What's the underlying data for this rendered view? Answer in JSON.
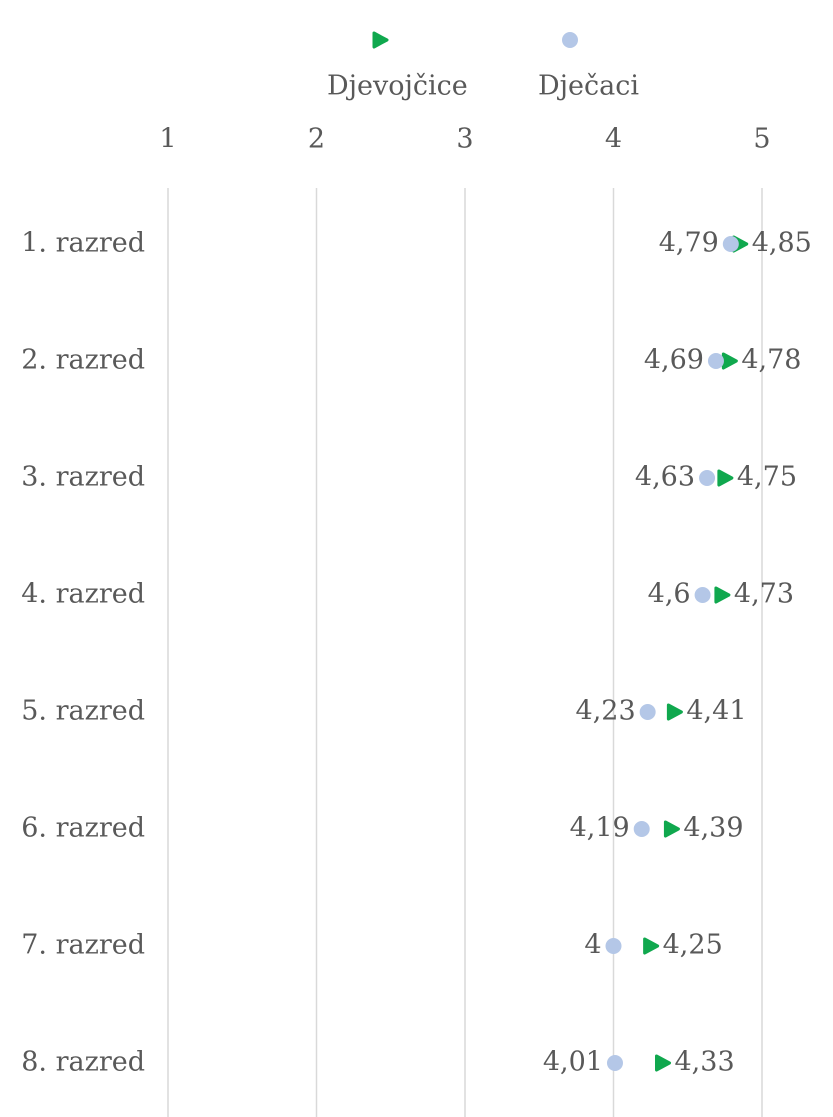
{
  "chart_data": {
    "type": "dot",
    "categories": [
      "1. razred",
      "2. razred",
      "3. razred",
      "4. razred",
      "5. razred",
      "6. razred",
      "7. razred",
      "8. razred"
    ],
    "series": [
      {
        "name": "Djevojčice",
        "color": "#10a84e",
        "marker": "triangle",
        "values": [
          4.85,
          4.78,
          4.75,
          4.73,
          4.41,
          4.39,
          4.25,
          4.33
        ],
        "value_labels": [
          "4,85",
          "4,78",
          "4,75",
          "4,73",
          "4,41",
          "4,39",
          "4,25",
          "4,33"
        ]
      },
      {
        "name": "Dječaci",
        "color": "#b4c7e7",
        "marker": "circle",
        "values": [
          4.79,
          4.69,
          4.63,
          4.6,
          4.23,
          4.19,
          4,
          4.01
        ],
        "value_labels": [
          "4,79",
          "4,69",
          "4,63",
          "4,6",
          "4,23",
          "4,19",
          "4",
          "4,01"
        ]
      }
    ],
    "xlim": [
      1,
      5
    ],
    "xticks": [
      1,
      2,
      3,
      4,
      5
    ],
    "grid": true,
    "legend": "top"
  }
}
